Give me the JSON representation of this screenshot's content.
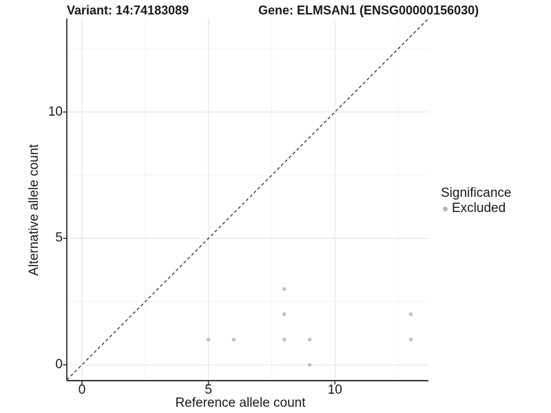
{
  "header": {
    "variant_title": "Variant: 14:74183089",
    "gene_title": "Gene: ELMSAN1 (ENSG00000156030)"
  },
  "chart_data": {
    "type": "scatter",
    "title": "",
    "xlabel": "Reference allele count",
    "ylabel": "Alternative allele count",
    "xlim": [
      -0.65,
      13.7
    ],
    "ylim": [
      -0.65,
      13.7
    ],
    "x_ticks": [
      "0",
      "5",
      "10"
    ],
    "x_tick_values": [
      0,
      5,
      10
    ],
    "y_ticks": [
      "0",
      "5",
      "10"
    ],
    "y_tick_values": [
      0,
      5,
      10
    ],
    "minor_tick_values": [
      2.5,
      7.5,
      12.5
    ],
    "grid": "major+minor",
    "identity_line": {
      "type": "abline",
      "slope": 1,
      "intercept": 0,
      "style": "dashed",
      "color": "#1a1a1a"
    },
    "series": [
      {
        "name": "Excluded",
        "color": "#bfbfbf",
        "points": [
          [
            5,
            1
          ],
          [
            6,
            1
          ],
          [
            8,
            1
          ],
          [
            8,
            2
          ],
          [
            8,
            3
          ],
          [
            9,
            0
          ],
          [
            9,
            1
          ],
          [
            13,
            1
          ],
          [
            13,
            2
          ]
        ]
      }
    ],
    "legend": {
      "title": "Significance",
      "position": "right-center",
      "entries": [
        {
          "label": "Excluded",
          "color": "#b5b5b5"
        }
      ]
    },
    "colors": {
      "point": "#bfbfbf",
      "grid_major": "#e6e6e6",
      "grid_minor": "#f2f2f2",
      "axis_line": "#333333",
      "text": "#1a1a1a"
    }
  }
}
